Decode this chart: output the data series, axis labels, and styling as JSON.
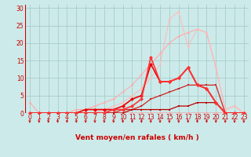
{
  "xlabel": "Vent moyen/en rafales ( km/h )",
  "xlim": [
    -0.5,
    23.5
  ],
  "ylim": [
    0,
    31
  ],
  "yticks": [
    0,
    5,
    10,
    15,
    20,
    25,
    30
  ],
  "xticks": [
    0,
    1,
    2,
    3,
    4,
    5,
    6,
    7,
    8,
    9,
    10,
    11,
    12,
    13,
    14,
    15,
    16,
    17,
    18,
    19,
    20,
    21,
    22,
    23
  ],
  "bg_color": "#cceaea",
  "grid_color": "#aacccc",
  "lines": [
    {
      "x": [
        0,
        1,
        2,
        3,
        4,
        5,
        6,
        7,
        8,
        9,
        10,
        11,
        12,
        13,
        14,
        15,
        16,
        17,
        18,
        19,
        20,
        21,
        22,
        23
      ],
      "y": [
        3,
        0,
        0,
        0,
        0,
        0,
        0,
        0,
        0,
        0,
        0,
        0,
        0,
        0,
        0,
        0,
        0,
        0,
        0,
        0,
        0,
        0,
        0,
        0
      ],
      "color": "#ffaaaa",
      "lw": 0.8,
      "marker": "o",
      "ms": 1.8,
      "zorder": 2
    },
    {
      "x": [
        0,
        1,
        2,
        3,
        4,
        5,
        6,
        7,
        8,
        9,
        10,
        11,
        12,
        13,
        14,
        15,
        16,
        17,
        18,
        19,
        20,
        21,
        22,
        23
      ],
      "y": [
        0,
        0,
        0,
        0,
        0,
        1,
        1,
        2,
        3,
        4,
        6,
        8,
        11,
        14,
        17,
        20,
        22,
        23,
        24,
        23,
        13,
        1,
        2,
        0
      ],
      "color": "#ffaaaa",
      "lw": 0.8,
      "marker": "o",
      "ms": 1.8,
      "zorder": 2
    },
    {
      "x": [
        0,
        1,
        2,
        3,
        4,
        5,
        6,
        7,
        8,
        9,
        10,
        11,
        12,
        13,
        14,
        15,
        16,
        17,
        18,
        19,
        20,
        21,
        22,
        23
      ],
      "y": [
        0,
        0,
        0,
        0,
        0,
        0,
        0,
        0,
        1,
        2,
        3,
        5,
        7,
        10,
        14,
        27,
        29,
        19,
        24,
        23,
        13,
        1,
        2,
        0
      ],
      "color": "#ffbbbb",
      "lw": 0.8,
      "marker": "o",
      "ms": 1.8,
      "zorder": 2
    },
    {
      "x": [
        0,
        1,
        2,
        3,
        4,
        5,
        6,
        7,
        8,
        9,
        10,
        11,
        12,
        13,
        14,
        15,
        16,
        17,
        18,
        19,
        20,
        21,
        22,
        23
      ],
      "y": [
        0,
        0,
        0,
        0,
        0,
        0,
        0,
        0,
        0,
        0,
        1,
        1,
        2,
        4,
        5,
        6,
        7,
        8,
        8,
        8,
        8,
        0,
        0,
        0
      ],
      "color": "#cc2222",
      "lw": 0.9,
      "marker": "s",
      "ms": 1.8,
      "zorder": 3
    },
    {
      "x": [
        0,
        1,
        2,
        3,
        4,
        5,
        6,
        7,
        8,
        9,
        10,
        11,
        12,
        13,
        14,
        15,
        16,
        17,
        18,
        19,
        20,
        21,
        22,
        23
      ],
      "y": [
        0,
        0,
        0,
        0,
        0,
        0,
        0,
        0,
        0,
        0,
        0,
        1,
        1,
        1,
        1,
        1,
        2,
        2,
        3,
        3,
        3,
        0,
        0,
        0
      ],
      "color": "#bb0000",
      "lw": 0.9,
      "marker": "s",
      "ms": 1.8,
      "zorder": 3
    },
    {
      "x": [
        0,
        1,
        2,
        3,
        4,
        5,
        6,
        7,
        8,
        9,
        10,
        11,
        12,
        13,
        14,
        15,
        16,
        17,
        18,
        19,
        20,
        21,
        22,
        23
      ],
      "y": [
        0,
        0,
        0,
        0,
        0,
        0,
        1,
        1,
        1,
        1,
        2,
        4,
        5,
        14,
        9,
        9,
        10,
        13,
        8,
        7,
        3,
        0,
        0,
        0
      ],
      "color": "#ee0000",
      "lw": 1.2,
      "marker": "D",
      "ms": 2.5,
      "zorder": 4
    },
    {
      "x": [
        0,
        1,
        2,
        3,
        4,
        5,
        6,
        7,
        8,
        9,
        10,
        11,
        12,
        13,
        14,
        15,
        16,
        17,
        18,
        19,
        20,
        21,
        22,
        23
      ],
      "y": [
        0,
        0,
        0,
        0,
        0,
        0,
        0,
        0,
        0,
        1,
        1,
        2,
        4,
        16,
        9,
        9,
        10,
        13,
        8,
        7,
        3,
        0,
        0,
        0
      ],
      "color": "#ff3333",
      "lw": 1.2,
      "marker": "D",
      "ms": 2.5,
      "zorder": 4
    }
  ],
  "arrow_color": "#cc0000",
  "xlabel_color": "#cc0000",
  "xlabel_fontsize": 6.5,
  "tick_fontsize": 5.5,
  "ytick_color": "#cc0000",
  "xtick_color": "#cc0000",
  "hline_color": "#cc0000"
}
